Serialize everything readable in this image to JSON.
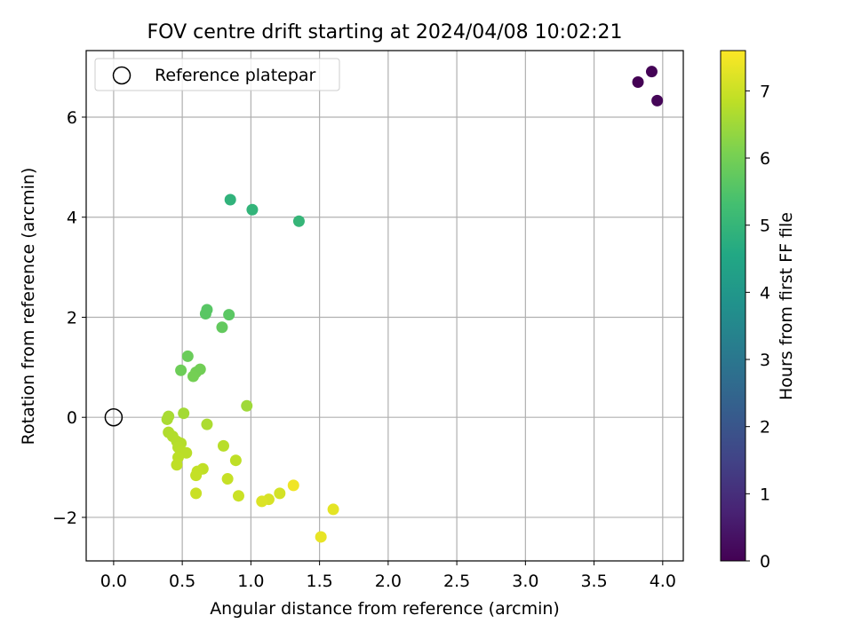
{
  "chart_data": {
    "type": "scatter",
    "title": "FOV centre drift starting at 2024/04/08 10:02:21",
    "xlabel": "Angular distance from reference (arcmin)",
    "ylabel": "Rotation from reference (arcmin)",
    "xlim": [
      -0.2,
      4.15
    ],
    "ylim": [
      -2.87,
      7.33
    ],
    "xticks": [
      "0.0",
      "0.5",
      "1.0",
      "1.5",
      "2.0",
      "2.5",
      "3.0",
      "3.5",
      "4.0"
    ],
    "yticks": [
      "-2",
      "0",
      "2",
      "4",
      "6"
    ],
    "grid": true,
    "legend": {
      "position": "top-left",
      "entries": [
        "Reference platepar"
      ]
    },
    "reference_point": {
      "x": 0.0,
      "y": 0.0,
      "label": "Reference platepar"
    },
    "colorbar": {
      "label": "Hours from first FF file",
      "colormap": "viridis",
      "range": [
        0,
        7.6
      ],
      "ticks": [
        "0",
        "1",
        "2",
        "3",
        "4",
        "5",
        "6",
        "7"
      ]
    },
    "points": [
      {
        "x": 3.82,
        "y": 6.7,
        "c": 0.0
      },
      {
        "x": 3.92,
        "y": 6.91,
        "c": 0.05
      },
      {
        "x": 3.96,
        "y": 6.33,
        "c": 0.1
      },
      {
        "x": 0.85,
        "y": 4.35,
        "c": 4.9
      },
      {
        "x": 1.01,
        "y": 4.15,
        "c": 4.95
      },
      {
        "x": 1.35,
        "y": 3.92,
        "c": 5.0
      },
      {
        "x": 0.68,
        "y": 2.15,
        "c": 5.6
      },
      {
        "x": 0.67,
        "y": 2.07,
        "c": 5.62
      },
      {
        "x": 0.84,
        "y": 2.05,
        "c": 5.65
      },
      {
        "x": 0.79,
        "y": 1.8,
        "c": 5.75
      },
      {
        "x": 0.54,
        "y": 1.22,
        "c": 5.85
      },
      {
        "x": 0.49,
        "y": 0.94,
        "c": 5.9
      },
      {
        "x": 0.63,
        "y": 0.96,
        "c": 5.95
      },
      {
        "x": 0.6,
        "y": 0.9,
        "c": 5.97
      },
      {
        "x": 0.58,
        "y": 0.82,
        "c": 6.0
      },
      {
        "x": 0.97,
        "y": 0.23,
        "c": 6.5
      },
      {
        "x": 0.51,
        "y": 0.08,
        "c": 6.55
      },
      {
        "x": 0.4,
        "y": 0.02,
        "c": 6.6
      },
      {
        "x": 0.39,
        "y": -0.04,
        "c": 6.62
      },
      {
        "x": 0.68,
        "y": -0.14,
        "c": 6.65
      },
      {
        "x": 0.4,
        "y": -0.3,
        "c": 6.7
      },
      {
        "x": 0.43,
        "y": -0.38,
        "c": 6.72
      },
      {
        "x": 0.46,
        "y": -0.48,
        "c": 6.74
      },
      {
        "x": 0.49,
        "y": -0.52,
        "c": 6.75
      },
      {
        "x": 0.47,
        "y": -0.6,
        "c": 6.76
      },
      {
        "x": 0.8,
        "y": -0.57,
        "c": 6.78
      },
      {
        "x": 0.49,
        "y": -0.68,
        "c": 6.8
      },
      {
        "x": 0.53,
        "y": -0.71,
        "c": 6.81
      },
      {
        "x": 0.47,
        "y": -0.8,
        "c": 6.82
      },
      {
        "x": 0.89,
        "y": -0.86,
        "c": 6.85
      },
      {
        "x": 0.46,
        "y": -0.95,
        "c": 6.86
      },
      {
        "x": 0.65,
        "y": -1.03,
        "c": 6.88
      },
      {
        "x": 0.61,
        "y": -1.08,
        "c": 6.9
      },
      {
        "x": 0.6,
        "y": -1.16,
        "c": 6.92
      },
      {
        "x": 0.83,
        "y": -1.23,
        "c": 6.95
      },
      {
        "x": 0.6,
        "y": -1.52,
        "c": 6.98
      },
      {
        "x": 0.91,
        "y": -1.57,
        "c": 7.0
      },
      {
        "x": 1.21,
        "y": -1.52,
        "c": 7.1
      },
      {
        "x": 1.13,
        "y": -1.64,
        "c": 7.15
      },
      {
        "x": 1.08,
        "y": -1.68,
        "c": 7.2
      },
      {
        "x": 1.31,
        "y": -1.36,
        "c": 7.45
      },
      {
        "x": 1.6,
        "y": -1.84,
        "c": 7.3
      },
      {
        "x": 1.51,
        "y": -2.39,
        "c": 7.35
      }
    ]
  }
}
